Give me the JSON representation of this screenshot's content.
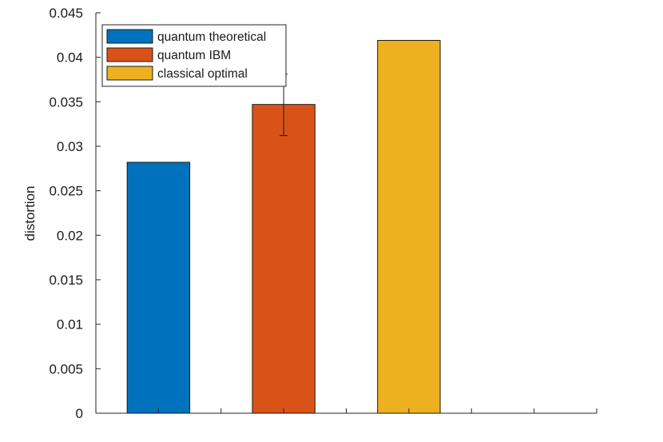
{
  "chart_data": {
    "type": "bar",
    "title": "",
    "xlabel": "",
    "ylabel": "distortion",
    "ylim": [
      0,
      0.045
    ],
    "y_ticks": [
      "0",
      "0.005",
      "0.01",
      "0.015",
      "0.02",
      "0.025",
      "0.03",
      "0.035",
      "0.04",
      "0.045"
    ],
    "y_tick_values": [
      0,
      0.005,
      0.01,
      0.015,
      0.02,
      0.025,
      0.03,
      0.035,
      0.04,
      0.045
    ],
    "x_positions": [
      0.5,
      1,
      2,
      3,
      4,
      4.5
    ],
    "categories": [
      "quantum theoretical",
      "quantum IBM",
      "classical optimal"
    ],
    "values": [
      0.0282,
      0.0347,
      0.0419
    ],
    "error_bars": [
      null,
      {
        "low": 0.0312,
        "high": 0.0381
      },
      null
    ],
    "colors": [
      "#0072bd",
      "#d95319",
      "#edb120"
    ],
    "legend": {
      "position": "top-left",
      "entries": [
        "quantum theoretical",
        "quantum IBM",
        "classical optimal"
      ]
    },
    "grid": false
  }
}
